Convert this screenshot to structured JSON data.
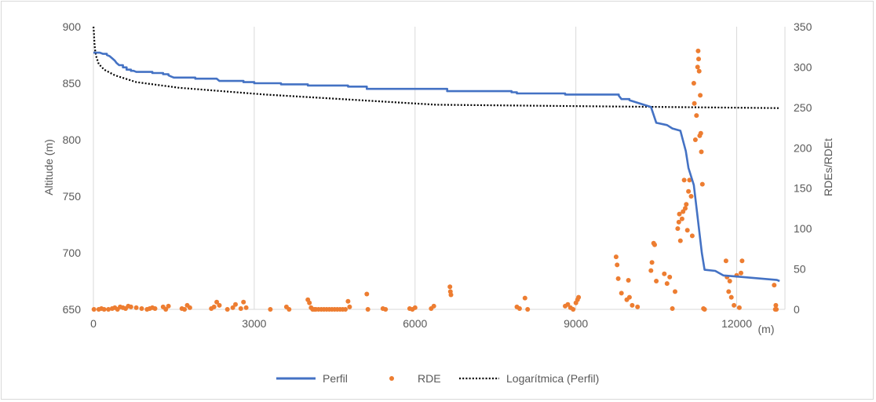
{
  "chart_data": {
    "type": "line",
    "xunit": "(m)",
    "xlabel": "",
    "ylabel": "Altitude (m)",
    "y2label": "RDEs/RDEt",
    "xlim": [
      0,
      12900
    ],
    "xticks": [
      0,
      3000,
      6000,
      9000,
      12000
    ],
    "ylim": [
      650,
      900
    ],
    "yticks": [
      650,
      700,
      750,
      800,
      850,
      900
    ],
    "y2lim": [
      0,
      350
    ],
    "y2ticks": [
      0,
      50,
      100,
      150,
      200,
      250,
      300,
      350
    ],
    "grid": "vertical",
    "legend_position": "bottom",
    "legend": [
      "Perfil",
      "RDE",
      "Logarítmica (Perfil)"
    ],
    "colors": {
      "perfil": "#4472c4",
      "rde": "#ed7d31",
      "trend": "#000000",
      "grid": "#d9d9d9",
      "axis": "#d9d9d9"
    },
    "series": [
      {
        "name": "Perfil",
        "type": "line",
        "axis": "left",
        "x": [
          0,
          120,
          180,
          250,
          300,
          350,
          400,
          430,
          480,
          550,
          620,
          700,
          750,
          800,
          1000,
          1100,
          1300,
          1400,
          1450,
          1500,
          1800,
          1900,
          2300,
          2350,
          2700,
          2800,
          3000,
          3500,
          4000,
          4500,
          4750,
          5000,
          5100,
          6500,
          6600,
          7800,
          7900,
          8700,
          8800,
          9800,
          9850,
          10000,
          10400,
          10500,
          10700,
          10800,
          10950,
          11050,
          11100,
          11200,
          11250,
          11350,
          11400,
          11600,
          11750,
          12000,
          12750,
          12800
        ],
        "y": [
          877,
          877,
          876,
          875,
          874,
          872,
          870,
          868,
          866,
          864,
          862,
          861,
          861,
          860,
          860,
          859,
          858,
          857,
          856,
          855,
          855,
          854,
          854,
          852,
          852,
          851,
          850,
          849,
          848,
          848,
          847,
          847,
          845,
          845,
          843,
          842,
          841,
          841,
          840,
          839,
          836,
          835,
          829,
          815,
          813,
          810,
          808,
          790,
          775,
          760,
          740,
          700,
          685,
          684,
          680,
          679,
          676,
          675
        ]
      },
      {
        "name": "RDE",
        "type": "scatter",
        "axis": "right",
        "x": [
          10,
          100,
          150,
          200,
          280,
          350,
          400,
          450,
          500,
          550,
          600,
          650,
          700,
          800,
          900,
          1000,
          1050,
          1100,
          1150,
          1300,
          1350,
          1400,
          1650,
          1700,
          1750,
          1800,
          2200,
          2250,
          2300,
          2350,
          2500,
          2600,
          2650,
          2750,
          2800,
          2850,
          3300,
          3600,
          3650,
          4000,
          4030,
          4060,
          4090,
          4120,
          4150,
          4200,
          4250,
          4300,
          4350,
          4400,
          4450,
          4500,
          4550,
          4600,
          4650,
          4700,
          4750,
          4780,
          5100,
          5120,
          5400,
          5450,
          5900,
          5950,
          6000,
          6300,
          6350,
          6650,
          6660,
          6670,
          7900,
          7950,
          8050,
          8100,
          8800,
          8850,
          8900,
          8950,
          9000,
          9030,
          9050,
          9750,
          9770,
          9790,
          9850,
          9950,
          9980,
          10000,
          10050,
          10150,
          10400,
          10420,
          10450,
          10470,
          10500,
          10650,
          10700,
          10750,
          10800,
          10850,
          10900,
          10920,
          10930,
          10950,
          10980,
          11000,
          11020,
          11040,
          11060,
          11080,
          11100,
          11120,
          11150,
          11170,
          11200,
          11210,
          11230,
          11250,
          11270,
          11280,
          11290,
          11300,
          11310,
          11320,
          11330,
          11340,
          11360,
          11380,
          11400,
          11800,
          11820,
          11850,
          11870,
          11900,
          11950,
          12000,
          12050,
          12080,
          12100,
          12700,
          12720,
          12730,
          12740
        ],
        "y": [
          0,
          0,
          1,
          0,
          0,
          1,
          2,
          0,
          3,
          2,
          1,
          4,
          3,
          2,
          1,
          0,
          1,
          2,
          1,
          3,
          0,
          4,
          1,
          0,
          5,
          2,
          1,
          3,
          9,
          5,
          0,
          2,
          6,
          1,
          9,
          2,
          0,
          3,
          0,
          12,
          8,
          2,
          0,
          0,
          0,
          0,
          0,
          0,
          0,
          0,
          0,
          0,
          0,
          0,
          0,
          0,
          10,
          3,
          19,
          0,
          1,
          0,
          1,
          0,
          2,
          1,
          4,
          28,
          22,
          18,
          3,
          1,
          14,
          0,
          4,
          6,
          2,
          0,
          8,
          12,
          15,
          65,
          55,
          38,
          20,
          12,
          36,
          15,
          5,
          3,
          48,
          58,
          82,
          80,
          35,
          44,
          32,
          40,
          1,
          22,
          100,
          108,
          118,
          85,
          112,
          121,
          160,
          125,
          130,
          98,
          146,
          160,
          140,
          91,
          280,
          255,
          210,
          240,
          300,
          320,
          310,
          295,
          215,
          265,
          218,
          195,
          155,
          1,
          0,
          60,
          40,
          22,
          35,
          15,
          5,
          42,
          2,
          45,
          60,
          30,
          0,
          5,
          0
        ]
      },
      {
        "name": "Logarítmica (Perfil)",
        "type": "line",
        "style": "dotted",
        "axis": "left",
        "x": [
          1,
          10,
          20,
          30,
          50,
          100,
          200,
          400,
          800,
          1600,
          3200,
          6400,
          12800
        ],
        "y": [
          900,
          894,
          885,
          880,
          874,
          867,
          862,
          857,
          851,
          846,
          840,
          831,
          828
        ]
      }
    ]
  }
}
